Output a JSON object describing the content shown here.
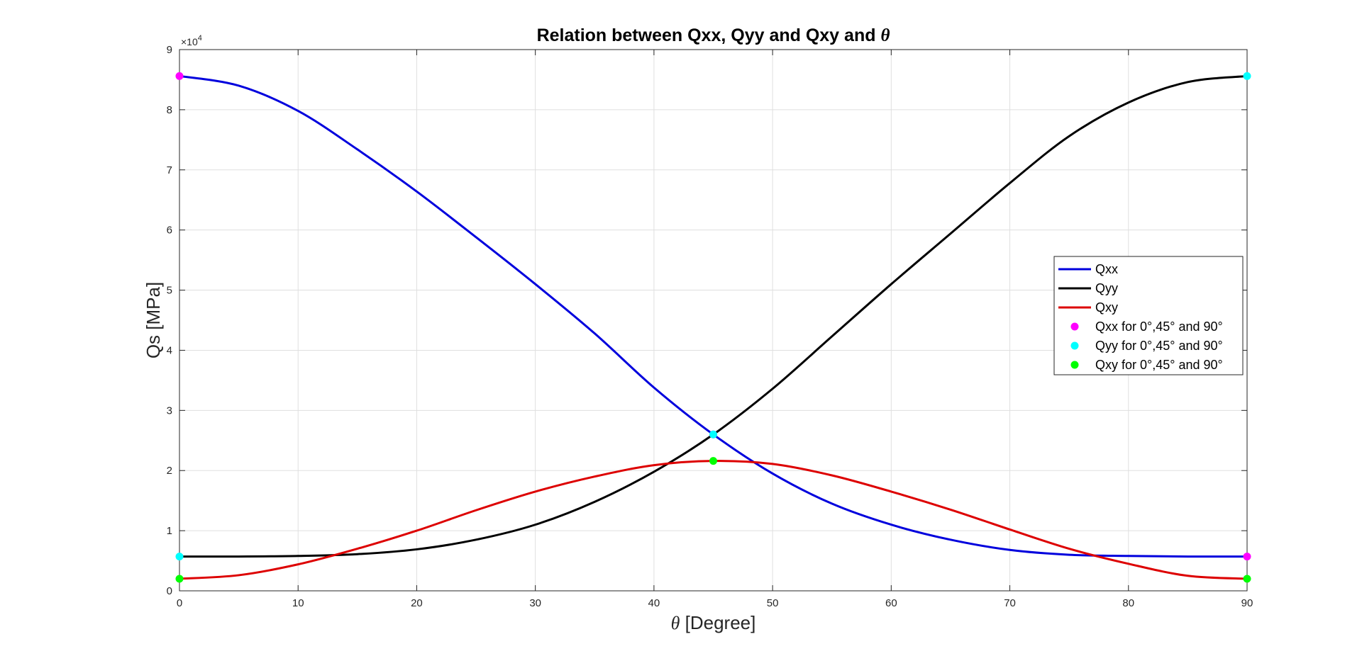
{
  "chart_data": {
    "type": "line",
    "title": "Relation between Qxx, Qyy and Qxy and",
    "title_symbol": "θ",
    "xlabel_symbol": "θ",
    "xlabel": "[Degree]",
    "ylabel": "Qs [MPa]",
    "y_exponent": "×10",
    "y_exponent_power": "4",
    "xlim": [
      0,
      90
    ],
    "ylim": [
      0,
      90000
    ],
    "x_ticks": [
      0,
      10,
      20,
      30,
      40,
      50,
      60,
      70,
      80,
      90
    ],
    "y_ticks": [
      0,
      10000,
      20000,
      30000,
      40000,
      50000,
      60000,
      70000,
      80000,
      90000
    ],
    "y_tick_labels": [
      "0",
      "1",
      "2",
      "3",
      "4",
      "5",
      "6",
      "7",
      "8",
      "9"
    ],
    "grid": true,
    "legend_position": "right",
    "x": [
      0,
      5,
      10,
      15,
      20,
      25,
      30,
      35,
      40,
      45,
      50,
      55,
      60,
      65,
      70,
      75,
      80,
      85,
      90
    ],
    "series": [
      {
        "name": "Qxx",
        "color": "#0000dd",
        "values": [
          85600,
          84000,
          79800,
          73400,
          66400,
          58800,
          51000,
          42800,
          33800,
          26000,
          19500,
          14500,
          11000,
          8500,
          6800,
          6000,
          5800,
          5700,
          5700
        ]
      },
      {
        "name": "Qyy",
        "color": "#000000",
        "values": [
          5700,
          5700,
          5800,
          6100,
          6900,
          8500,
          11000,
          14800,
          19800,
          26000,
          33600,
          42300,
          51000,
          59400,
          67800,
          75600,
          81200,
          84600,
          85600
        ]
      },
      {
        "name": "Qxy",
        "color": "#dd0000",
        "values": [
          2000,
          2600,
          4400,
          7000,
          10000,
          13400,
          16500,
          19000,
          20900,
          21600,
          21100,
          19200,
          16500,
          13500,
          10200,
          7000,
          4500,
          2500,
          2000
        ]
      }
    ],
    "markers": [
      {
        "name": "Qxx for 0°,45° and 90°",
        "color": "#ff00ff",
        "points": [
          [
            0,
            85600
          ],
          [
            45,
            26000
          ],
          [
            90,
            5700
          ]
        ]
      },
      {
        "name": "Qyy for 0°,45° and 90°",
        "color": "#00ffff",
        "points": [
          [
            0,
            5700
          ],
          [
            45,
            26000
          ],
          [
            90,
            85600
          ]
        ]
      },
      {
        "name": "Qxy for 0°,45° and 90°",
        "color": "#00ff00",
        "points": [
          [
            0,
            2000
          ],
          [
            45,
            21600
          ],
          [
            90,
            2000
          ]
        ]
      }
    ]
  }
}
